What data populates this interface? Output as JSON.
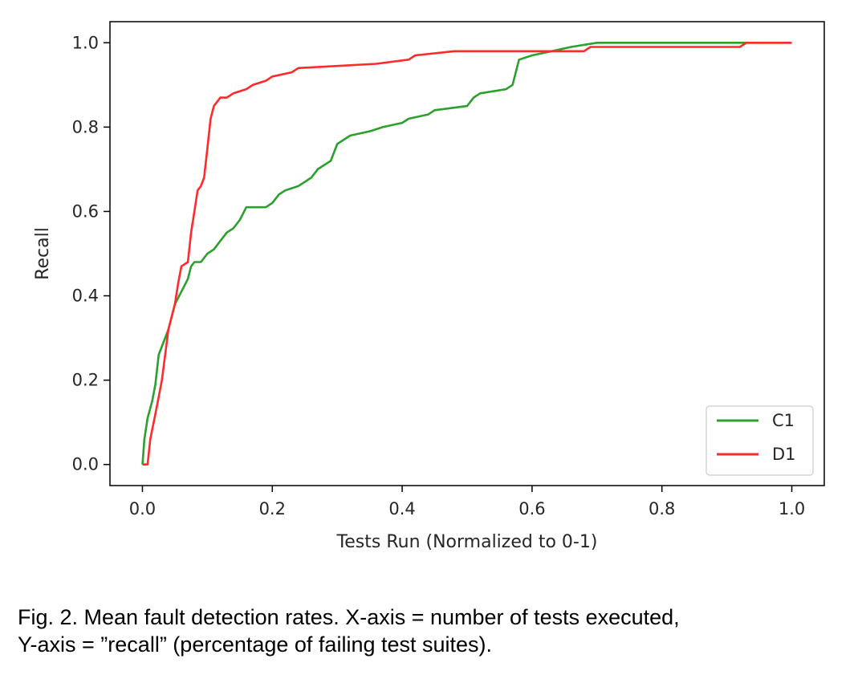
{
  "chart_data": {
    "type": "line",
    "xlabel": "Tests Run (Normalized to 0-1)",
    "ylabel": "Recall",
    "xlim": [
      -0.05,
      1.05
    ],
    "ylim": [
      -0.05,
      1.05
    ],
    "x_ticks": [
      "0.0",
      "0.2",
      "0.4",
      "0.6",
      "0.8",
      "1.0"
    ],
    "y_ticks": [
      "0.0",
      "0.2",
      "0.4",
      "0.6",
      "0.8",
      "1.0"
    ],
    "grid": false,
    "legend_position": "lower-right",
    "series": [
      {
        "name": "C1",
        "color": "#2ca02c",
        "points": [
          [
            0.0,
            0.0
          ],
          [
            0.003,
            0.06
          ],
          [
            0.008,
            0.11
          ],
          [
            0.015,
            0.15
          ],
          [
            0.02,
            0.19
          ],
          [
            0.025,
            0.26
          ],
          [
            0.03,
            0.28
          ],
          [
            0.04,
            0.32
          ],
          [
            0.05,
            0.38
          ],
          [
            0.06,
            0.41
          ],
          [
            0.07,
            0.44
          ],
          [
            0.075,
            0.47
          ],
          [
            0.08,
            0.48
          ],
          [
            0.09,
            0.48
          ],
          [
            0.1,
            0.5
          ],
          [
            0.11,
            0.51
          ],
          [
            0.12,
            0.53
          ],
          [
            0.13,
            0.55
          ],
          [
            0.14,
            0.56
          ],
          [
            0.15,
            0.58
          ],
          [
            0.16,
            0.61
          ],
          [
            0.19,
            0.61
          ],
          [
            0.2,
            0.62
          ],
          [
            0.21,
            0.64
          ],
          [
            0.22,
            0.65
          ],
          [
            0.24,
            0.66
          ],
          [
            0.25,
            0.67
          ],
          [
            0.26,
            0.68
          ],
          [
            0.27,
            0.7
          ],
          [
            0.29,
            0.72
          ],
          [
            0.3,
            0.76
          ],
          [
            0.32,
            0.78
          ],
          [
            0.35,
            0.79
          ],
          [
            0.37,
            0.8
          ],
          [
            0.4,
            0.81
          ],
          [
            0.41,
            0.82
          ],
          [
            0.44,
            0.83
          ],
          [
            0.45,
            0.84
          ],
          [
            0.5,
            0.85
          ],
          [
            0.51,
            0.87
          ],
          [
            0.52,
            0.88
          ],
          [
            0.56,
            0.89
          ],
          [
            0.57,
            0.9
          ],
          [
            0.58,
            0.96
          ],
          [
            0.6,
            0.97
          ],
          [
            0.63,
            0.98
          ],
          [
            0.66,
            0.99
          ],
          [
            0.7,
            1.0
          ],
          [
            0.86,
            1.0
          ],
          [
            1.0,
            1.0
          ]
        ]
      },
      {
        "name": "D1",
        "color": "#ff2b2b",
        "points": [
          [
            0.0,
            0.0
          ],
          [
            0.008,
            0.0
          ],
          [
            0.012,
            0.06
          ],
          [
            0.02,
            0.12
          ],
          [
            0.025,
            0.16
          ],
          [
            0.03,
            0.2
          ],
          [
            0.035,
            0.26
          ],
          [
            0.04,
            0.32
          ],
          [
            0.05,
            0.38
          ],
          [
            0.055,
            0.43
          ],
          [
            0.06,
            0.47
          ],
          [
            0.07,
            0.48
          ],
          [
            0.075,
            0.55
          ],
          [
            0.08,
            0.6
          ],
          [
            0.085,
            0.65
          ],
          [
            0.09,
            0.66
          ],
          [
            0.095,
            0.68
          ],
          [
            0.1,
            0.75
          ],
          [
            0.105,
            0.82
          ],
          [
            0.11,
            0.85
          ],
          [
            0.12,
            0.87
          ],
          [
            0.13,
            0.87
          ],
          [
            0.14,
            0.88
          ],
          [
            0.16,
            0.89
          ],
          [
            0.17,
            0.9
          ],
          [
            0.19,
            0.91
          ],
          [
            0.2,
            0.92
          ],
          [
            0.23,
            0.93
          ],
          [
            0.24,
            0.94
          ],
          [
            0.36,
            0.95
          ],
          [
            0.41,
            0.96
          ],
          [
            0.42,
            0.97
          ],
          [
            0.48,
            0.98
          ],
          [
            0.55,
            0.98
          ],
          [
            0.68,
            0.98
          ],
          [
            0.69,
            0.99
          ],
          [
            0.92,
            0.99
          ],
          [
            0.93,
            1.0
          ],
          [
            1.0,
            1.0
          ]
        ]
      }
    ]
  },
  "caption": {
    "line1": "Fig. 2. Mean fault detection rates. X-axis = number of tests executed,",
    "line2": "Y-axis = ”recall” (percentage of failing test suites)."
  }
}
